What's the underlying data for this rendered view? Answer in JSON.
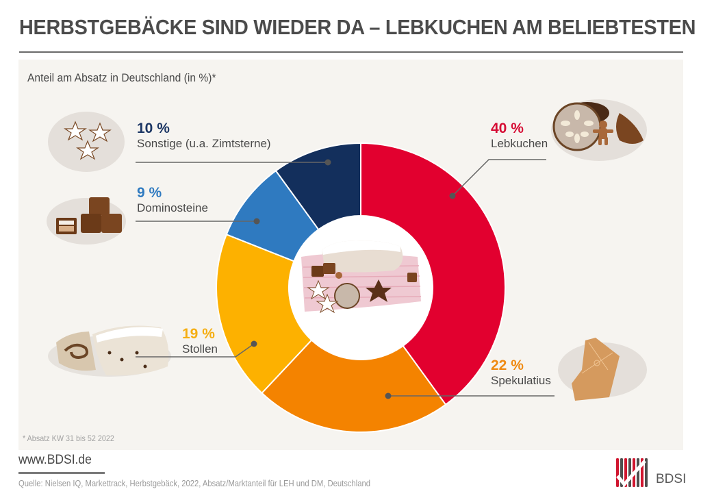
{
  "header": {
    "title": "HERBSTGEBÄCKE SIND WIEDER DA – LEBKUCHEN AM BELIEBTESTEN"
  },
  "chart_data": {
    "type": "pie",
    "variant": "donut",
    "title": "Anteil am Absatz in Deutschland (in %)*",
    "unit": "%",
    "start_angle": "top (12 o'clock), clockwise",
    "slices": [
      {
        "label": "Lebkuchen",
        "value": 40,
        "display": "40 %",
        "color": "#e2002f",
        "label_color": "#d60d35"
      },
      {
        "label": "Spekulatius",
        "value": 22,
        "display": "22 %",
        "color": "#f48300",
        "label_color": "#ef8a12"
      },
      {
        "label": "Stollen",
        "value": 19,
        "display": "19 %",
        "color": "#fdb100",
        "label_color": "#f5ae12"
      },
      {
        "label": "Dominosteine",
        "value": 9,
        "display": "9 %",
        "color": "#2f7ac0",
        "label_color": "#2f7ac0"
      },
      {
        "label": "Sonstige (u.a. Zimtsterne)",
        "value": 10,
        "display": "10 %",
        "color": "#132f5c",
        "label_color": "#1c3664"
      }
    ],
    "center_image": "assorted-autumn-pastries-illustration",
    "footnote": "* Absatz KW 31 bis 52 2022"
  },
  "illustrations": {
    "lebkuchen": "lebkuchen-illustration",
    "spekulatius": "spekulatius-windmill-illustration",
    "stollen": "stollen-illustration",
    "dominosteine": "dominosteine-illustration",
    "sonstige": "zimtsterne-illustration"
  },
  "footer": {
    "url": "www.BDSI.de",
    "source": "Quelle: Nielsen IQ, Markettrack, Herbstgebäck, 2022, Absatz/Marktanteil für LEH und DM, Deutschland",
    "logo_text": "BDSI",
    "logo_colors": {
      "red": "#d0162f",
      "gray": "#4e4e4e"
    }
  }
}
